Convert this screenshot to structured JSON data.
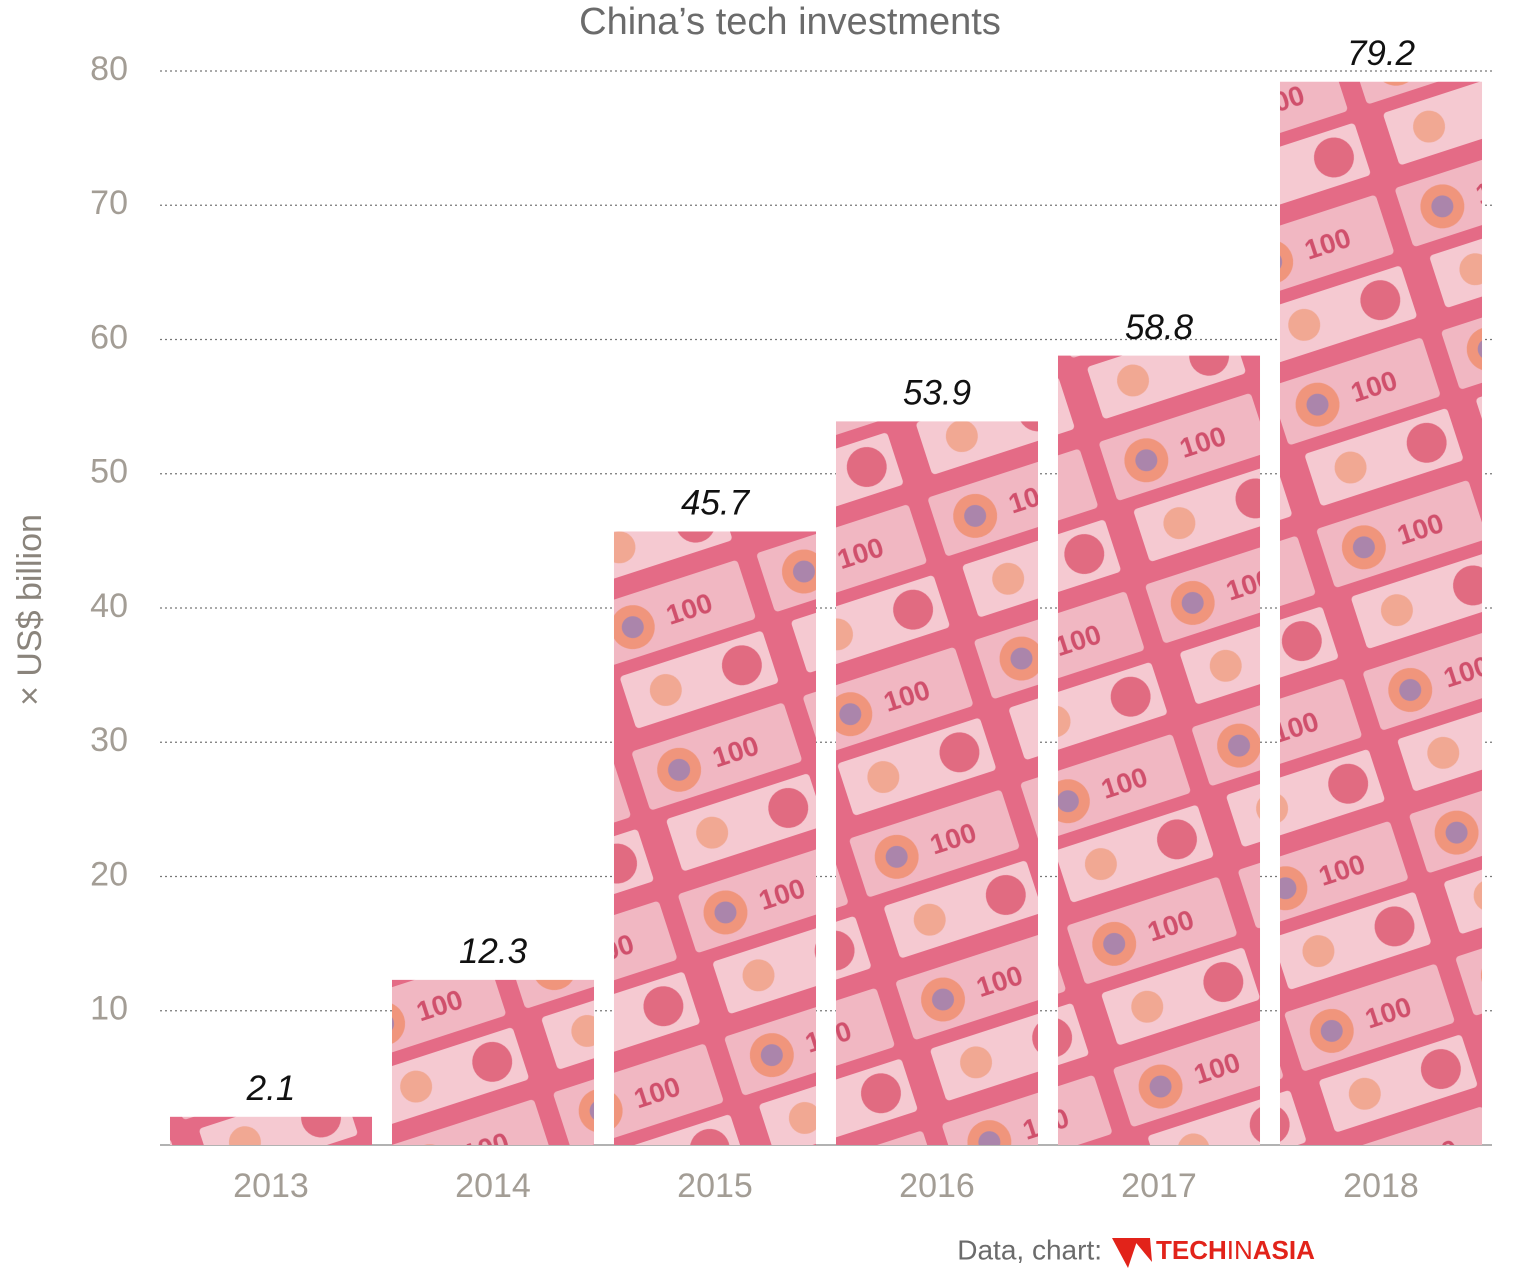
{
  "chart_data": {
    "type": "bar",
    "title": "China’s tech investments",
    "y_label": "× US$ billion",
    "categories": [
      "2013",
      "2014",
      "2015",
      "2016",
      "2017",
      "2018"
    ],
    "values": [
      2.1,
      12.3,
      45.7,
      53.9,
      58.8,
      79.2
    ],
    "color": "#e46b86",
    "ylim": [
      0,
      80
    ],
    "yticks": [
      10,
      20,
      30,
      40,
      50,
      60,
      70,
      80
    ],
    "grid": true,
    "source": "Data, chart:",
    "logo": [
      "TECH",
      "IN",
      "ASIA"
    ]
  }
}
